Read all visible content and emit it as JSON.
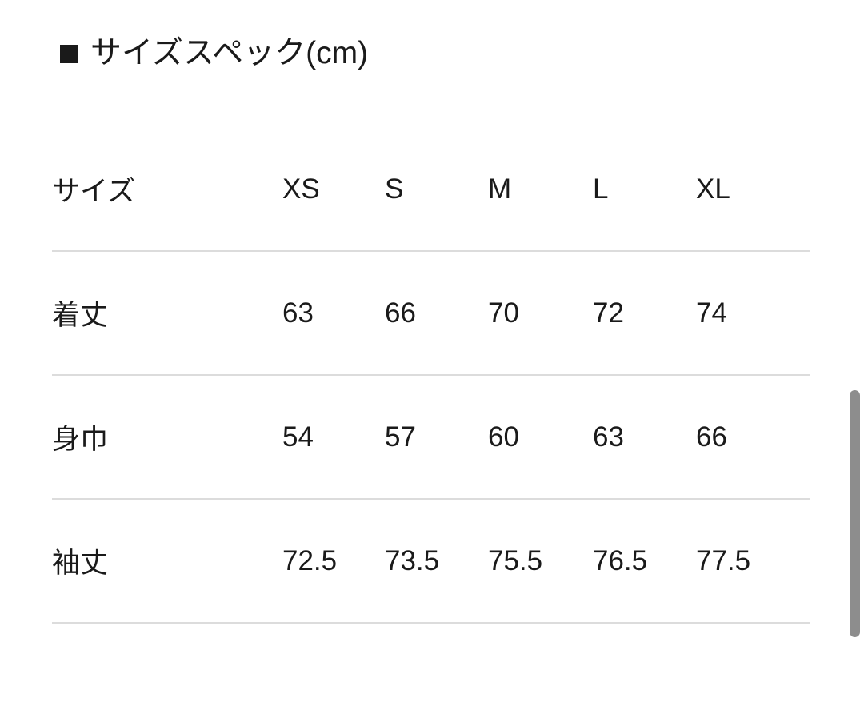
{
  "title": {
    "marker": "■",
    "text": "サイズスペック(cm)"
  },
  "table": {
    "header": {
      "label": "サイズ",
      "sizes": [
        "XS",
        "S",
        "M",
        "L",
        "XL"
      ]
    },
    "rows": [
      {
        "label": "着丈",
        "values": [
          "63",
          "66",
          "70",
          "72",
          "74"
        ]
      },
      {
        "label": "身巾",
        "values": [
          "54",
          "57",
          "60",
          "63",
          "66"
        ]
      },
      {
        "label": "袖丈",
        "values": [
          "72.5",
          "73.5",
          "75.5",
          "76.5",
          "77.5"
        ]
      }
    ]
  },
  "colors": {
    "text": "#1a1a1a",
    "divider": "#dcdcdc",
    "scrollbar_thumb": "#8d8d8d",
    "background": "#ffffff"
  }
}
